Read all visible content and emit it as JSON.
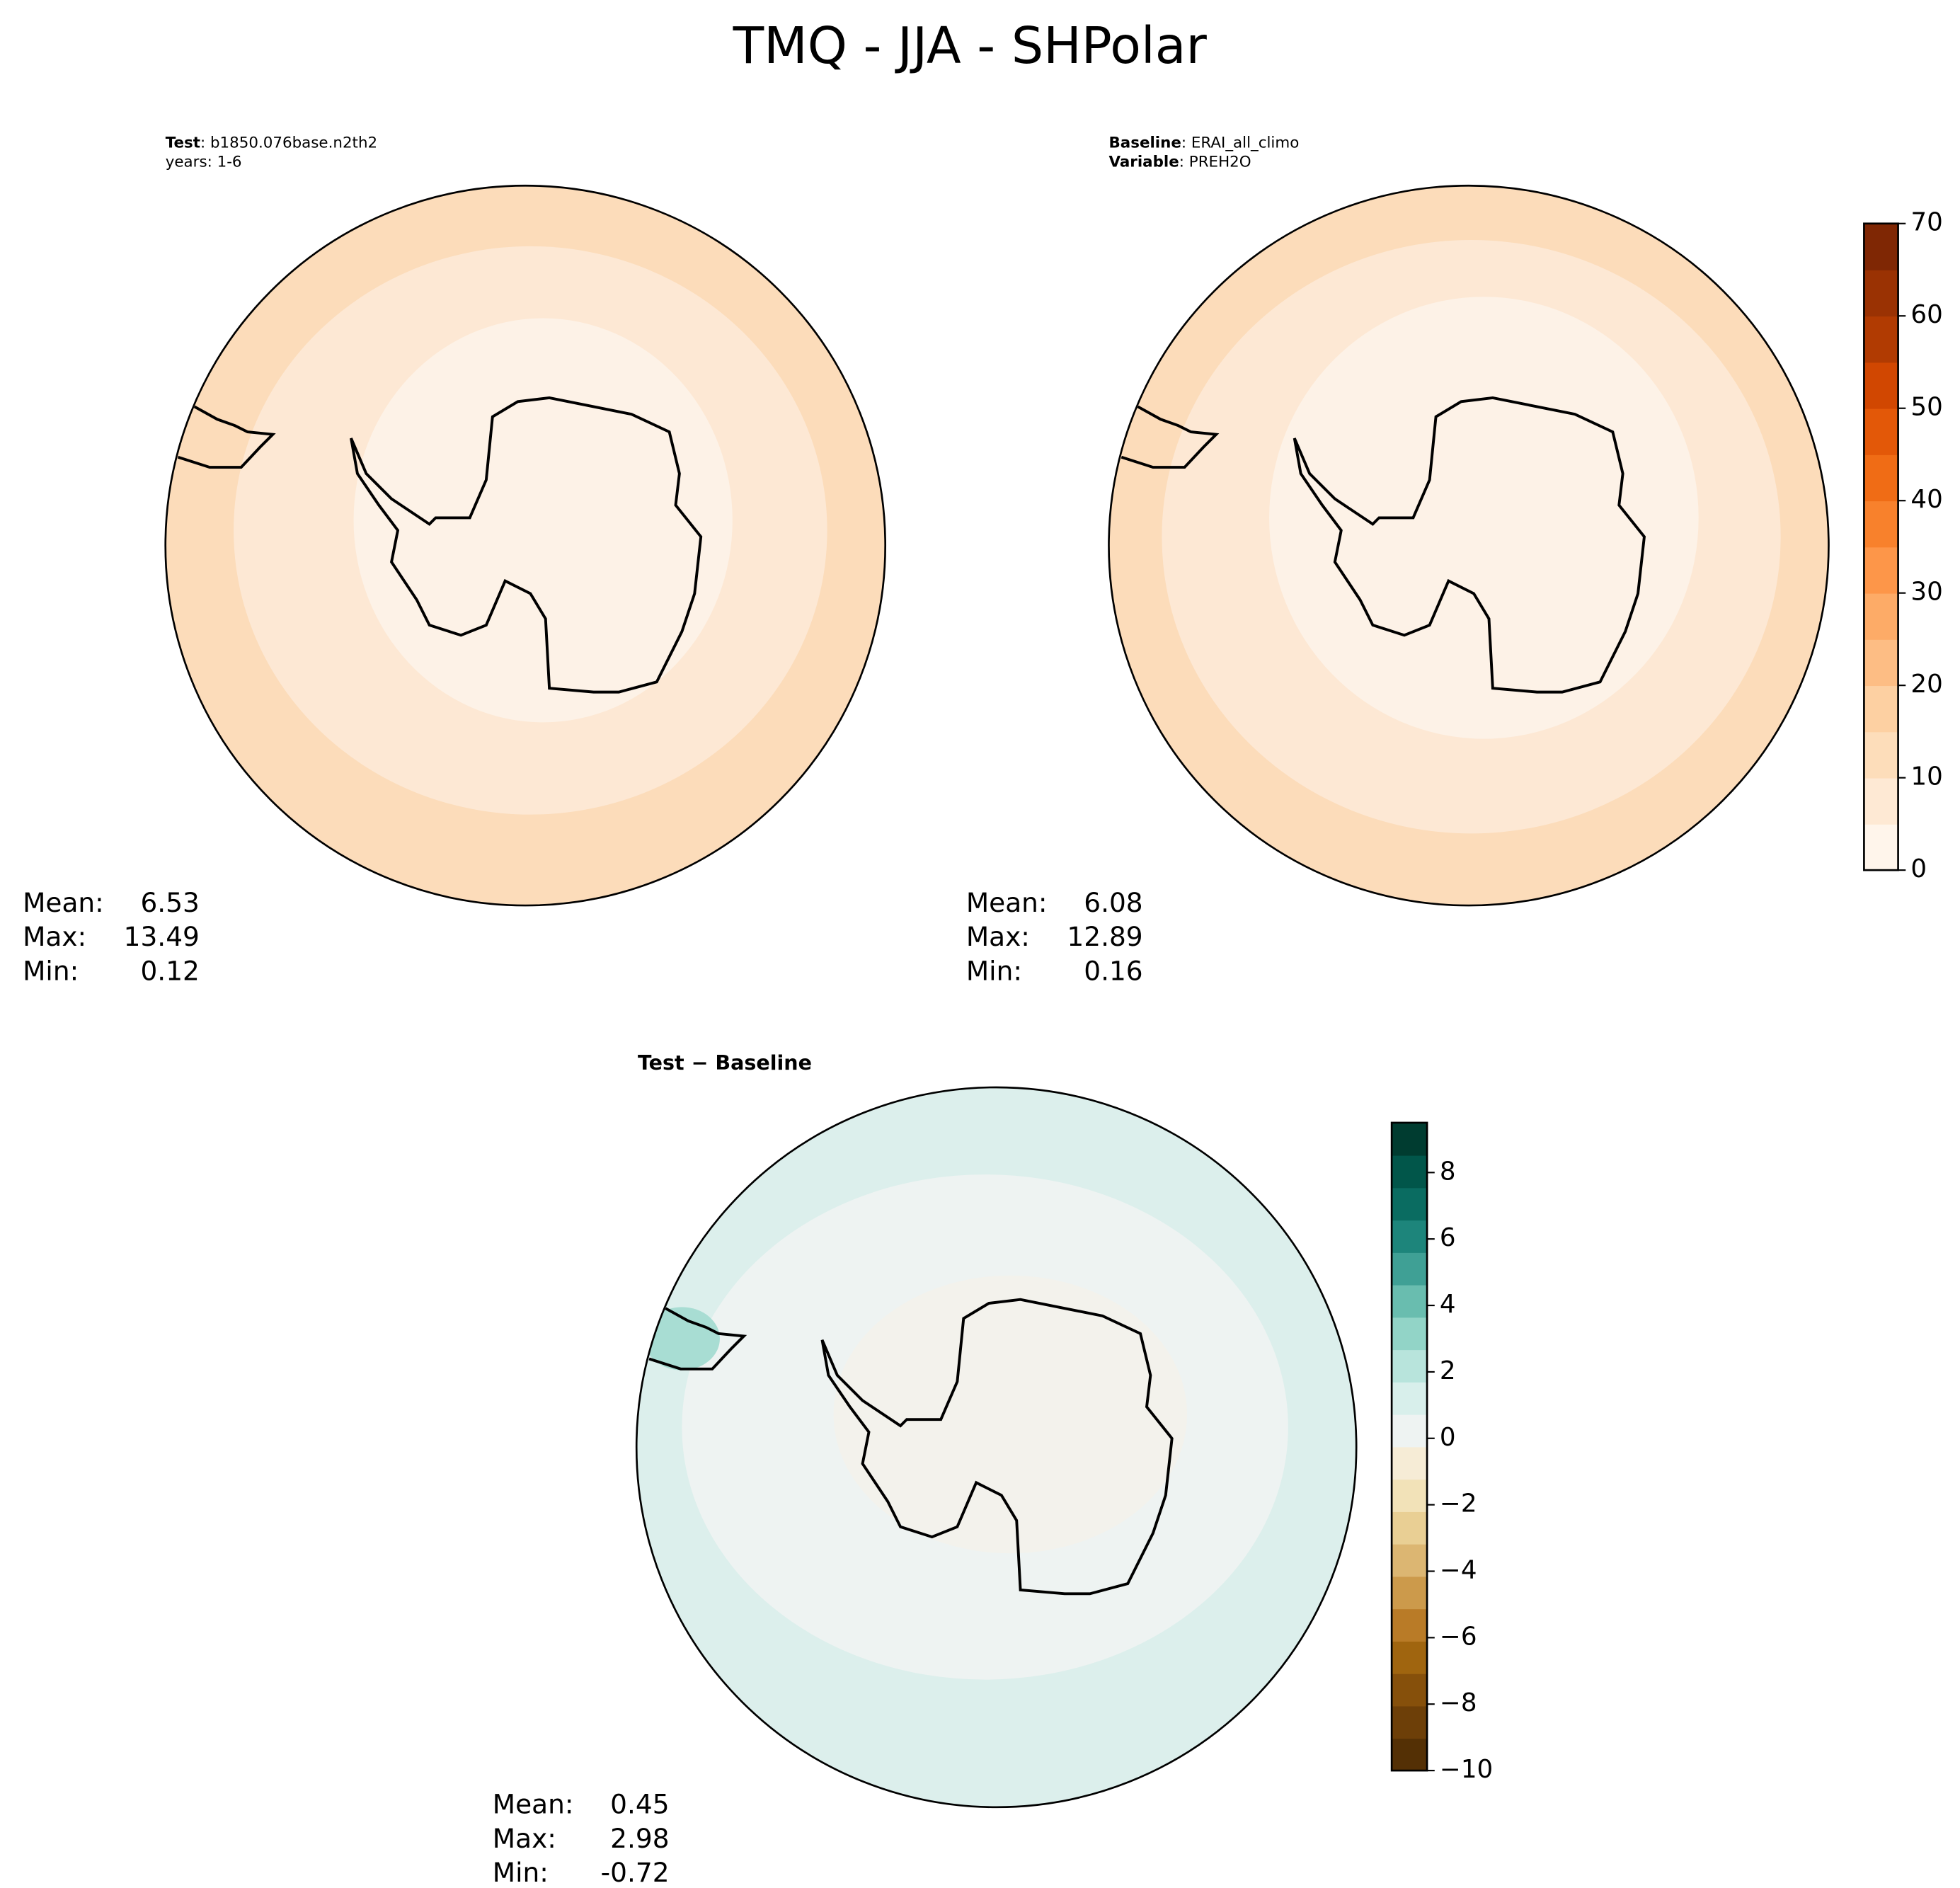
{
  "title": "TMQ - JJA - SHPolar",
  "panels": [
    {
      "header": [
        {
          "label": "Test",
          "value": ": b1850.076base.n2th2"
        },
        {
          "value": "years: 1-6"
        }
      ],
      "stats": [
        {
          "label": "Mean:",
          "value": 6.53
        },
        {
          "label": "Max:",
          "value": 13.49
        },
        {
          "label": "Min:",
          "value": 0.12
        }
      ]
    },
    {
      "header": [
        {
          "label": "Baseline",
          "value": ": ERAI_all_climo"
        },
        {
          "label": "Variable",
          "value": ": PREH2O"
        }
      ],
      "stats": [
        {
          "label": "Mean:",
          "value": 6.08
        },
        {
          "label": "Max:",
          "value": 12.89
        },
        {
          "label": "Min:",
          "value": 0.16
        }
      ]
    },
    {
      "header": [
        {
          "label": "Test − Baseline"
        }
      ],
      "stats": [
        {
          "label": "Mean:",
          "value": 0.45
        },
        {
          "label": "Max:",
          "value": 2.98
        },
        {
          "label": "Min:",
          "value": -0.72
        }
      ]
    }
  ],
  "colorbars": [
    {
      "lim": [
        0,
        70
      ],
      "ticks": [
        0,
        10,
        20,
        30,
        40,
        50,
        60,
        70
      ],
      "colors": [
        "#fff5eb",
        "#fee9d4",
        "#fdddba",
        "#fdd0a2",
        "#fdbd84",
        "#fdab67",
        "#fd9649",
        "#f8812c",
        "#f06c15",
        "#e35808",
        "#d14701",
        "#b13b02",
        "#9a3203",
        "#7f2704"
      ]
    },
    {
      "lim": [
        -10,
        9.5
      ],
      "ticks": [
        {
          "value": -10,
          "label": "−10"
        },
        {
          "value": -8,
          "label": "−8"
        },
        {
          "value": -6,
          "label": "−6"
        },
        {
          "value": -4,
          "label": "−4"
        },
        {
          "value": -2,
          "label": "−2"
        },
        0,
        2,
        4,
        6,
        8
      ],
      "colors": [
        "#543005",
        "#6d3f08",
        "#86500b",
        "#a0650f",
        "#b97b27",
        "#cc9a4b",
        "#dcb672",
        "#e9cf94",
        "#f2e2b8",
        "#f6ecd6",
        "#eef3f2",
        "#d8efeb",
        "#b8e4dc",
        "#92d4c7",
        "#69bdaf",
        "#3fa095",
        "#1d857b",
        "#0a6c61",
        "#01564a",
        "#003c30"
      ]
    }
  ]
}
